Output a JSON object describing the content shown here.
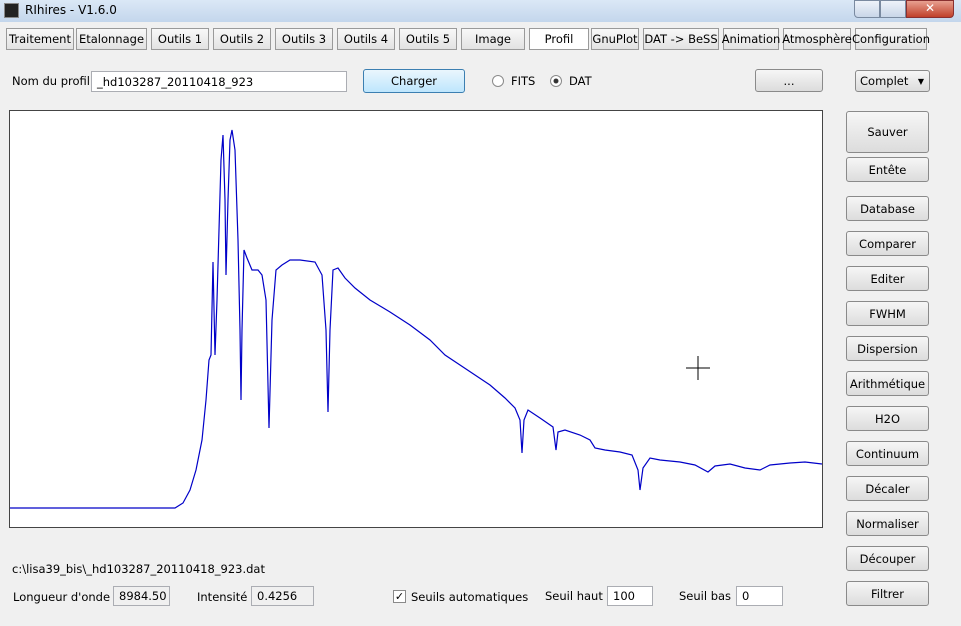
{
  "window": {
    "title": "RIhires - V1.6.0"
  },
  "tabs": [
    "Traitement",
    "Etalonnage",
    "Outils 1",
    "Outils 2",
    "Outils 3",
    "Outils 4",
    "Outils 5",
    "Image",
    "Profil",
    "GnuPlot",
    "DAT -> BeSS",
    "Animation",
    "Atmosphère",
    "Configuration"
  ],
  "profile": {
    "label": "Nom du profil :",
    "value": "_hd103287_20110418_923",
    "load": "Charger",
    "formats": [
      "FITS",
      "DAT"
    ],
    "browse": "...",
    "mode": "Complet"
  },
  "side_buttons": [
    "Sauver",
    "Entête",
    "Database",
    "Comparer",
    "Editer",
    "FWHM",
    "Dispersion",
    "Arithmétique",
    "H2O",
    "Continuum",
    "Décaler",
    "Normaliser",
    "Découper",
    "Filtrer"
  ],
  "status": {
    "path": "c:\\lisa39_bis\\_hd103287_20110418_923.dat",
    "wavelength_label": "Longueur d'onde :",
    "wavelength": "8984.50",
    "intensity_label": "Intensité :",
    "intensity": "0.4256",
    "auto_thresholds": "Seuils automatiques",
    "high_label": "Seuil haut :",
    "high": "100",
    "low_label": "Seuil bas :",
    "low": "0"
  }
}
